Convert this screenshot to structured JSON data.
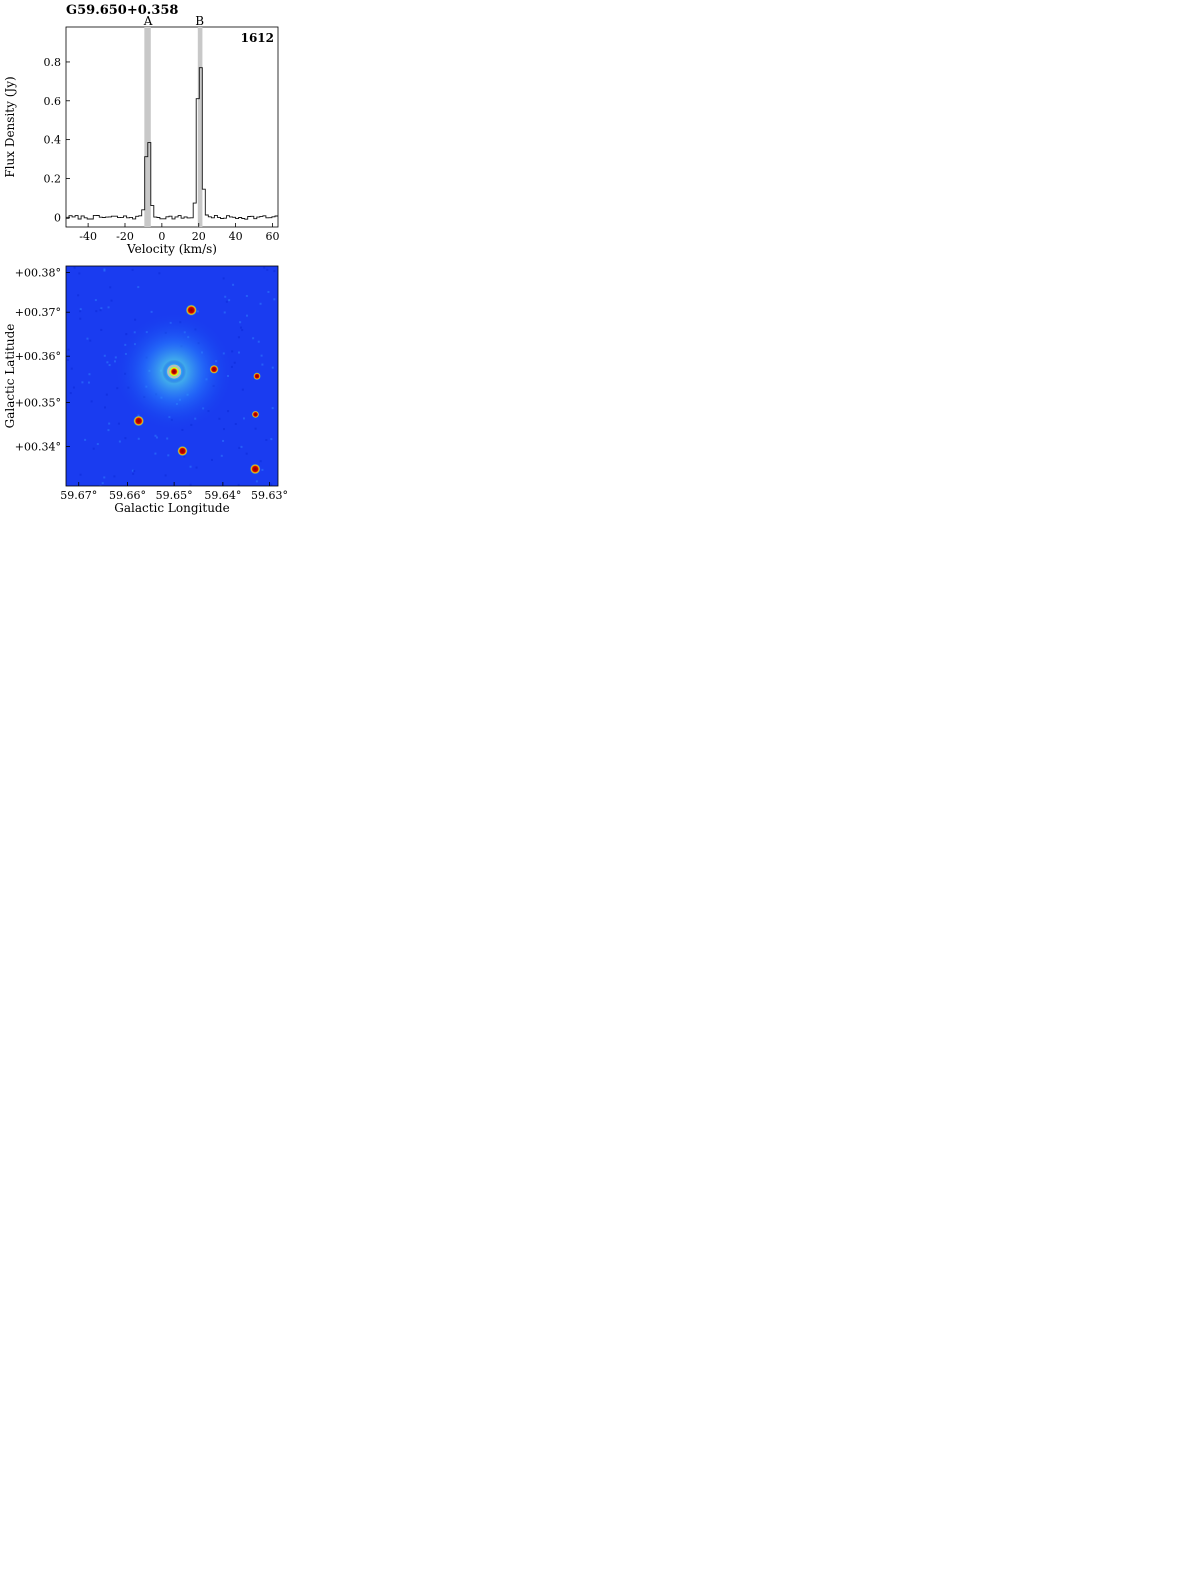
{
  "chart_data": [
    {
      "source": "G59.650+0.358",
      "spectra": [
        {
          "type": "line",
          "transition": "1612",
          "xlabel": "Velocity (km/s)",
          "ylabel": "Flux Density (Jy)",
          "xlim": [
            -52,
            63
          ],
          "ylim": [
            -0.05,
            0.98
          ],
          "xticks": [
            -40,
            -20,
            0,
            20,
            40,
            60
          ],
          "yticks": [
            0.0,
            0.2,
            0.4,
            0.6,
            0.8
          ],
          "noise": 0.01,
          "components": [
            {
              "label": "A",
              "velocity": -7.5,
              "peak": 0.44,
              "width": 1.2
            },
            {
              "label": "B",
              "velocity": 20.5,
              "peak": 0.88,
              "width": 1.2
            }
          ],
          "shaded": [
            {
              "label": "A",
              "range": [
                -9.5,
                -6.0
              ]
            },
            {
              "label": "B",
              "range": [
                19.5,
                22.0
              ]
            }
          ]
        }
      ],
      "image": {
        "type": "heatmap",
        "xlabel": "Galactic Longitude",
        "ylabel": "Galactic Latitude",
        "xlim": [
          59.675,
          59.625
        ],
        "ylim": [
          59.0,
          0.0
        ],
        "xticks": [
          "59.67°",
          "59.66°",
          "59.65°",
          "59.64°",
          "59.63°"
        ],
        "yticks": [
          "+00.34°",
          "+00.35°",
          "+00.36°",
          "+00.37°",
          "+00.38°"
        ],
        "xtick_pos": [
          0.06,
          0.29,
          0.51,
          0.74,
          0.96
        ],
        "ytick_pos": [
          0.82,
          0.62,
          0.41,
          0.21,
          0.03
        ],
        "marker": "circle",
        "marker_pos": [
          0.51,
          0.48
        ],
        "background": "blue",
        "morphology": "point"
      }
    }
  ]
}
